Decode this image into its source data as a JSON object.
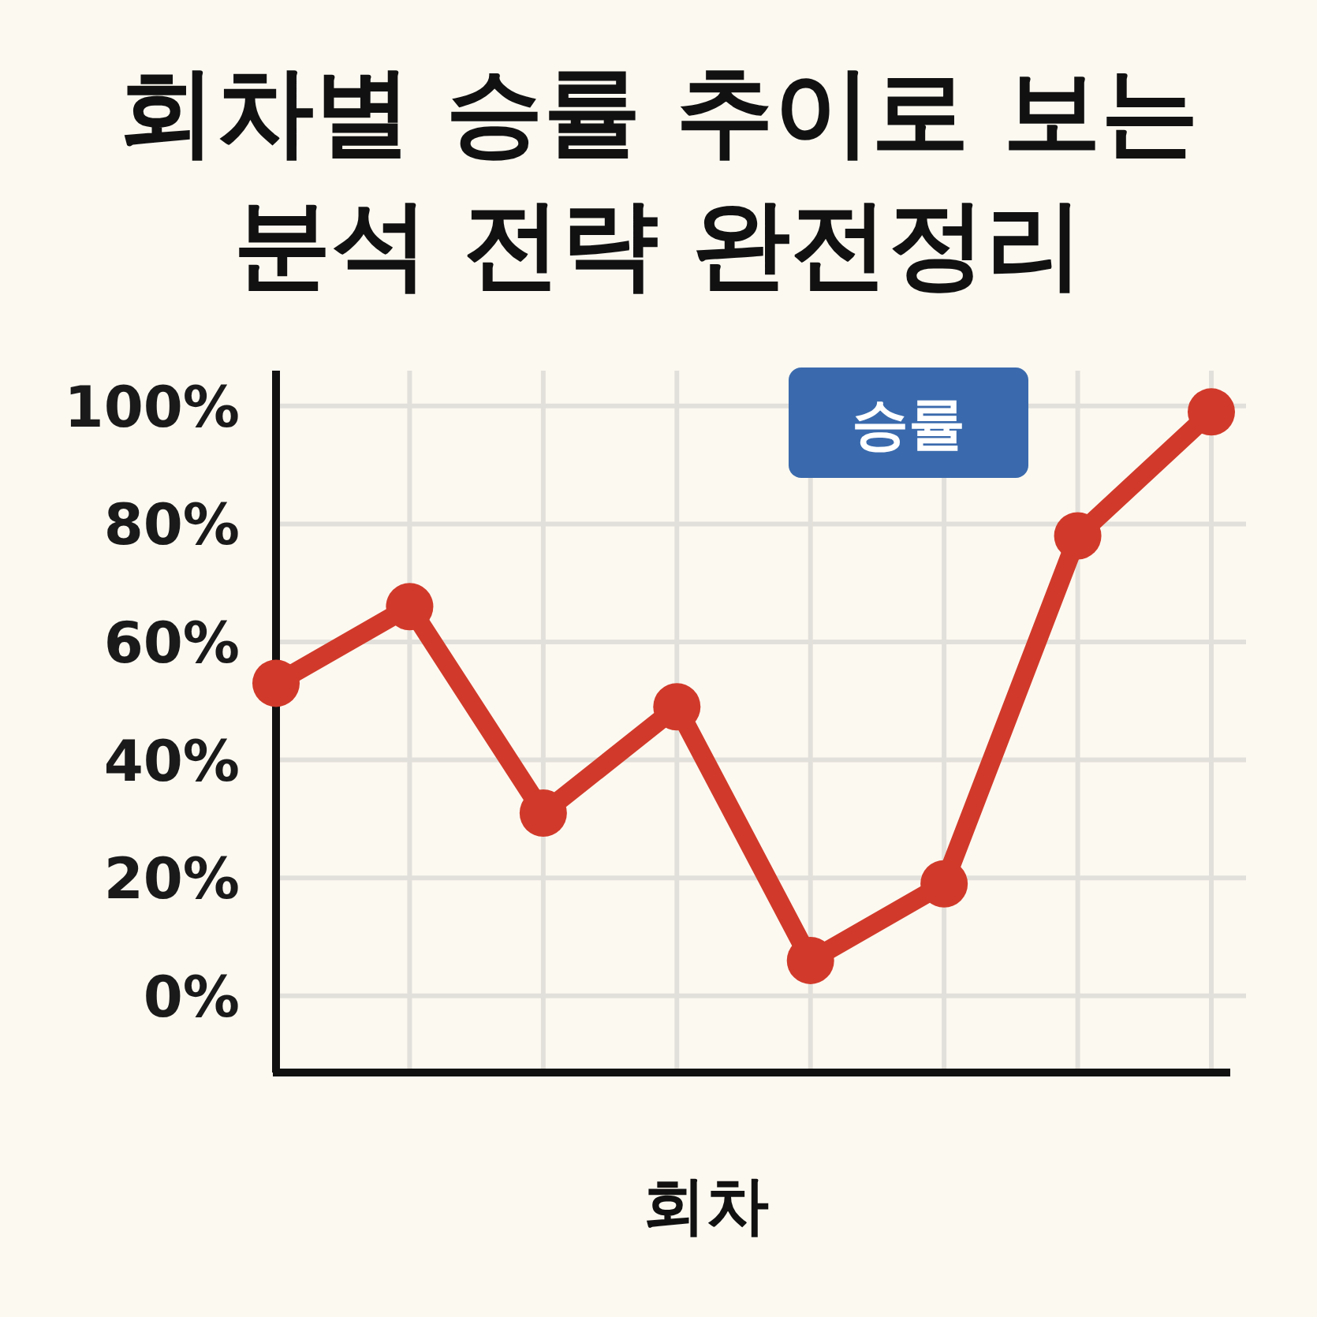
{
  "chart_data": {
    "type": "line",
    "title": "회차별 승률 추이로 보는\n분석 전략 완전정리",
    "xlabel": "회차",
    "categories": [
      null,
      null,
      null,
      null,
      null,
      null,
      null,
      null
    ],
    "series": [
      {
        "color": "#d13a2a",
        "values": [
          53,
          66,
          31,
          49,
          6,
          19,
          78,
          99
        ]
      }
    ],
    "ylim": [
      -13,
      106
    ],
    "yticks": [
      {
        "value": 0,
        "label": "0%"
      },
      {
        "value": 20,
        "label": "20%"
      },
      {
        "value": 40,
        "label": "40%"
      },
      {
        "value": 60,
        "label": "60%"
      },
      {
        "value": 80,
        "label": "80%"
      },
      {
        "value": 100,
        "label": "100%"
      }
    ],
    "annotations": [
      "승률"
    ],
    "grid": true,
    "marker": "circle",
    "line_style": "solid"
  }
}
